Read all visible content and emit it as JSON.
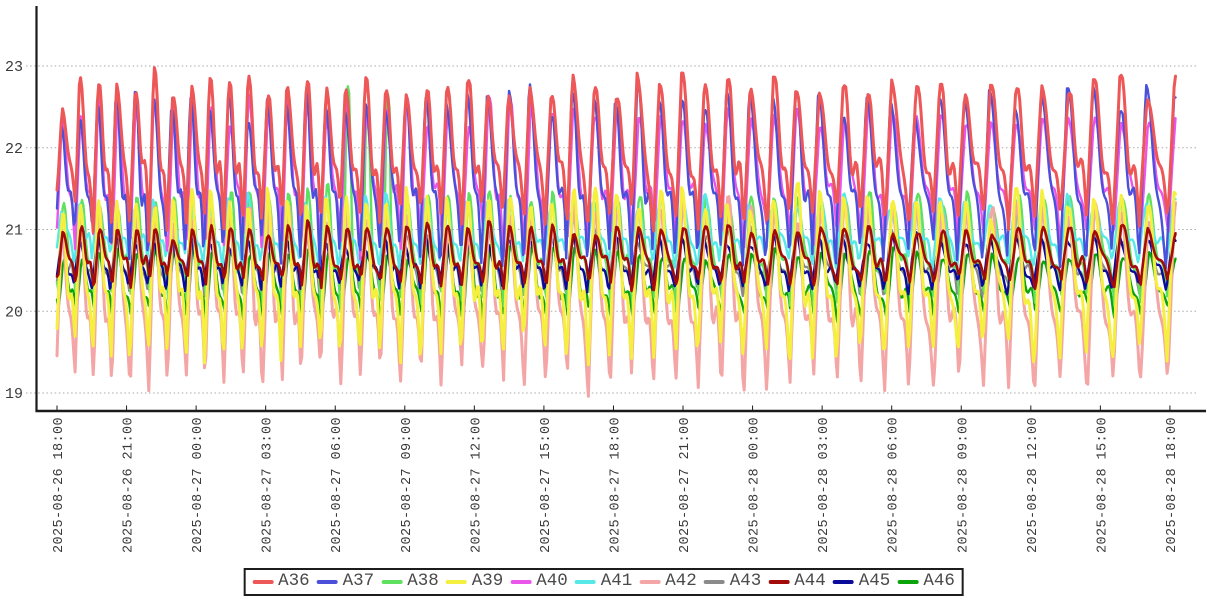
{
  "chart_data": {
    "type": "line",
    "title": "",
    "x_axis": {
      "label": "",
      "start": "2025-08-26 18:00",
      "end": "2025-08-28 18:00",
      "tick_interval_hours": 3,
      "tick_rotation_degrees": -90,
      "tick_labels": [
        "2025-08-26 18:00",
        "2025-08-26 21:00",
        "2025-08-27 00:00",
        "2025-08-27 03:00",
        "2025-08-27 06:00",
        "2025-08-27 09:00",
        "2025-08-27 12:00",
        "2025-08-27 15:00",
        "2025-08-27 18:00",
        "2025-08-27 21:00",
        "2025-08-28 00:00",
        "2025-08-28 03:00",
        "2025-08-28 06:00",
        "2025-08-28 09:00",
        "2025-08-28 12:00",
        "2025-08-28 15:00",
        "2025-08-28 18:00"
      ]
    },
    "y_axis": {
      "label": "",
      "tick_labels": [
        "19",
        "20",
        "21",
        "22",
        "23"
      ],
      "tick_values": [
        19,
        20,
        21,
        22,
        23
      ],
      "range_min": 18.8,
      "range_max": 23.6
    },
    "grid": {
      "horizontal_dashed": true,
      "vertical": false,
      "color": "#a8a8a8"
    },
    "duration_hours": 48.3,
    "oscillation": {
      "cycle_minutes_min": 47,
      "cycle_minutes_max": 70,
      "synchronized_across_series": true,
      "waveform": "fast rise, stepped decline with shoulder wiggles"
    },
    "series": [
      {
        "name": "A36",
        "color": "#ee5757",
        "y_min": 21.0,
        "y_max": 22.9,
        "amplitude_trend": -0.1,
        "line_width": 3,
        "phase_offset_hours": 0
      },
      {
        "name": "A37",
        "color": "#4b50da",
        "y_min": 20.55,
        "y_max": 22.75,
        "amplitude_trend": 0.22,
        "line_width": 2.4,
        "phase_offset_hours": 0.03
      },
      {
        "name": "A38",
        "color": "#5fe05f",
        "y_min": 20.05,
        "y_max": 21.45,
        "amplitude_trend": 0,
        "line_width": 2.4,
        "phase_offset_hours": -0.04,
        "spike": {
          "from_hour": 12.2,
          "to_hour": 14.4,
          "peak_boost_factor": 2.8
        }
      },
      {
        "name": "A39",
        "color": "#f5ef3f",
        "y_min": 19.35,
        "y_max": 21.52,
        "amplitude_trend": 0,
        "line_width": 3,
        "phase_offset_hours": 0.01
      },
      {
        "name": "A40",
        "color": "#ea56ea",
        "y_min": 20.75,
        "y_max": 22.55,
        "amplitude_trend": -0.35,
        "line_width": 2.4,
        "phase_offset_hours": -0.02
      },
      {
        "name": "A41",
        "color": "#57e8e8",
        "y_min": 20.55,
        "y_max": 21.38,
        "amplitude_trend": 0.08,
        "line_width": 2.4,
        "phase_offset_hours": 0.05
      },
      {
        "name": "A42",
        "color": "#f4a5a5",
        "y_min": 19.0,
        "y_max": 21.38,
        "amplitude_trend": 0,
        "line_width": 3,
        "phase_offset_hours": -0.01
      },
      {
        "name": "A43",
        "color": "#8a8a8a",
        "y_min": 20.2,
        "y_max": 21.0,
        "amplitude_trend": 0,
        "line_width": 2.4,
        "phase_offset_hours": 0.02
      },
      {
        "name": "A44",
        "color": "#a30b0b",
        "y_min": 20.3,
        "y_max": 21.05,
        "amplitude_trend": 0,
        "line_width": 2.6,
        "phase_offset_hours": -0.03
      },
      {
        "name": "A45",
        "color": "#0b0b9b",
        "y_min": 20.25,
        "y_max": 20.92,
        "amplitude_trend": 0,
        "line_width": 2.4,
        "phase_offset_hours": 0.04
      },
      {
        "name": "A46",
        "color": "#0aa30a",
        "y_min": 19.9,
        "y_max": 20.75,
        "amplitude_trend": 0,
        "line_width": 2.4,
        "phase_offset_hours": -0.05
      }
    ],
    "draw_order": [
      "A43",
      "A46",
      "A38",
      "A45",
      "A41",
      "A40",
      "A37",
      "A42",
      "A39",
      "A44",
      "A36"
    ],
    "legend": {
      "position": "bottom-center",
      "entries": [
        "A36",
        "A37",
        "A38",
        "A39",
        "A40",
        "A41",
        "A42",
        "A43",
        "A44",
        "A45",
        "A46"
      ]
    }
  },
  "colors": {
    "background": "#ffffff",
    "axis": "#1a1a1a",
    "tick_text": "#3a3a3a",
    "legend_text": "#4a4a4a",
    "grid": "#a8a8a8"
  }
}
